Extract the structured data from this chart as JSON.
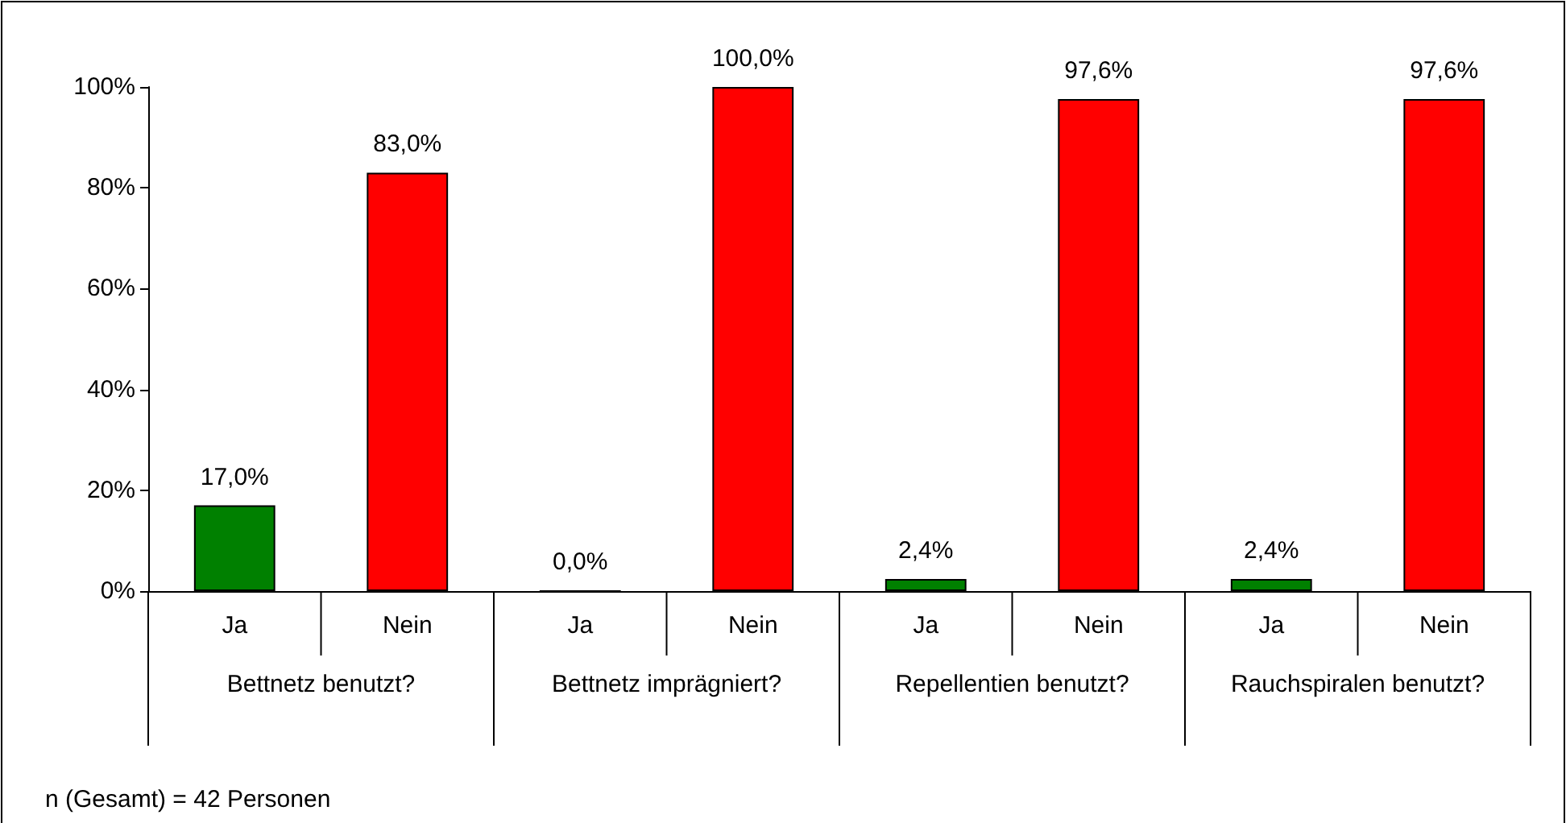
{
  "chart_data": {
    "type": "bar",
    "categories": [
      "Ja",
      "Nein",
      "Ja",
      "Nein",
      "Ja",
      "Nein",
      "Ja",
      "Nein"
    ],
    "values": [
      17.0,
      83.0,
      0.0,
      100.0,
      2.4,
      97.6,
      2.4,
      97.6
    ],
    "colors": [
      "#008000",
      "#ff0000",
      "#008000",
      "#ff0000",
      "#008000",
      "#ff0000",
      "#008000",
      "#ff0000"
    ],
    "value_labels": [
      "17,0%",
      "83,0%",
      "0,0%",
      "100,0%",
      "2,4%",
      "97,6%",
      "2,4%",
      "97,6%"
    ],
    "ylim": [
      0,
      100
    ],
    "yticks": [
      {
        "value": 0,
        "label": "0%"
      },
      {
        "value": 20,
        "label": "20%"
      },
      {
        "value": 40,
        "label": "40%"
      },
      {
        "value": 60,
        "label": "60%"
      },
      {
        "value": 80,
        "label": "80%"
      },
      {
        "value": 100,
        "label": "100%"
      }
    ],
    "grid": false,
    "annotations": [
      "Bettnetz benutzt?",
      "Bettnetz imprägniert?",
      "Repellentien benutzt?",
      "Rauchspiralen benutzt?",
      "n (Gesamt) = 42 Personen"
    ]
  }
}
